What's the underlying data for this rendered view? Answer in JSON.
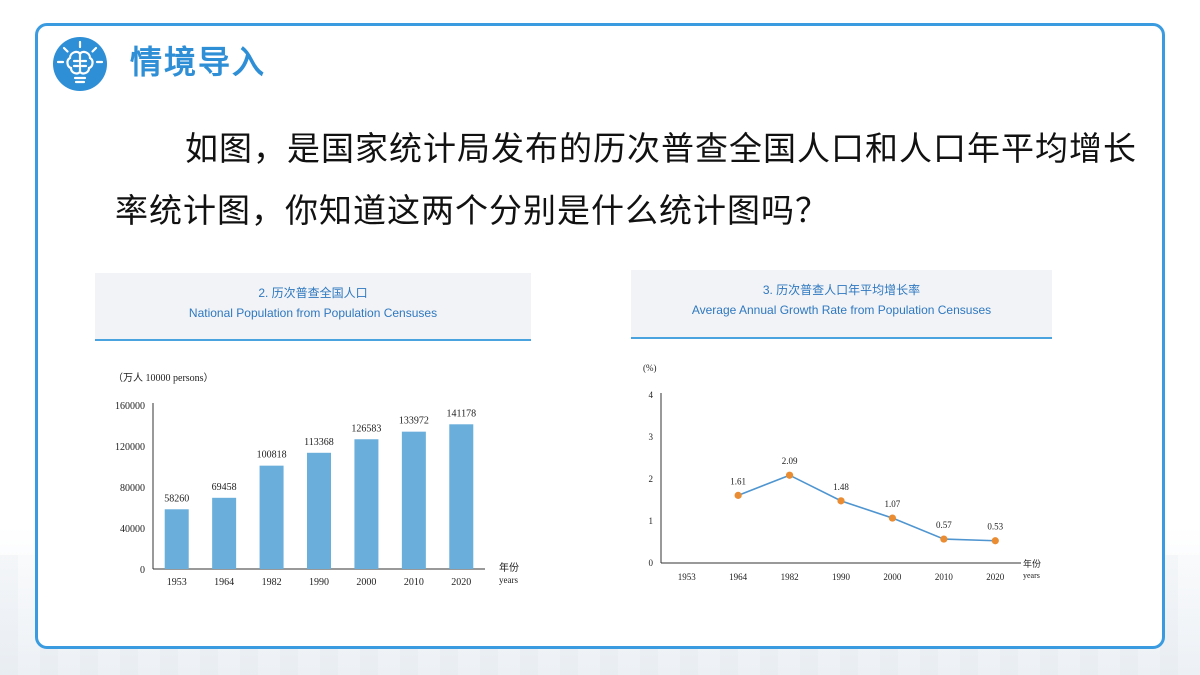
{
  "header": {
    "title": "情境导入"
  },
  "question": "如图，是国家统计局发布的历次普查全国人口和人口年平均增长率统计图，你知道这两个分别是什么统计图吗？",
  "colors": {
    "accent": "#2e8fd6",
    "border": "#3a9be0",
    "bar": "#6aaedb",
    "line": "#4f95d0",
    "point": "#e98c32"
  },
  "chart_data": [
    {
      "type": "bar",
      "title": "2. 历次普查全国人口",
      "subtitle": "National Population from Population Censuses",
      "unit_label": "（万人 10000 persons）",
      "xlabel_cn": "年份",
      "xlabel_en": "years",
      "categories": [
        "1953",
        "1964",
        "1982",
        "1990",
        "2000",
        "2010",
        "2020"
      ],
      "values": [
        58260,
        69458,
        100818,
        113368,
        126583,
        133972,
        141178
      ],
      "value_labels": [
        "58260",
        "69458",
        "100818",
        "113368",
        "126583",
        "133972",
        "141178"
      ],
      "yticks": [
        "0",
        "40000",
        "80000",
        "120000",
        "160000"
      ],
      "ylim": [
        0,
        160000
      ],
      "grid": false
    },
    {
      "type": "line",
      "title": "3. 历次普查人口年平均增长率",
      "subtitle": "Average Annual Growth Rate from Population Censuses",
      "unit_label": "(%)",
      "xlabel_cn": "年份",
      "xlabel_en": "years",
      "categories": [
        "1953",
        "1964",
        "1982",
        "1990",
        "2000",
        "2010",
        "2020"
      ],
      "points": [
        {
          "x": "1964",
          "y": 1.61,
          "label": "1.61"
        },
        {
          "x": "1982",
          "y": 2.09,
          "label": "2.09"
        },
        {
          "x": "1990",
          "y": 1.48,
          "label": "1.48"
        },
        {
          "x": "2000",
          "y": 1.07,
          "label": "1.07"
        },
        {
          "x": "2010",
          "y": 0.57,
          "label": "0.57"
        },
        {
          "x": "2020",
          "y": 0.53,
          "label": "0.53"
        }
      ],
      "yticks": [
        "0",
        "1",
        "2",
        "3",
        "4"
      ],
      "ylim": [
        0,
        4
      ],
      "grid": false
    }
  ]
}
